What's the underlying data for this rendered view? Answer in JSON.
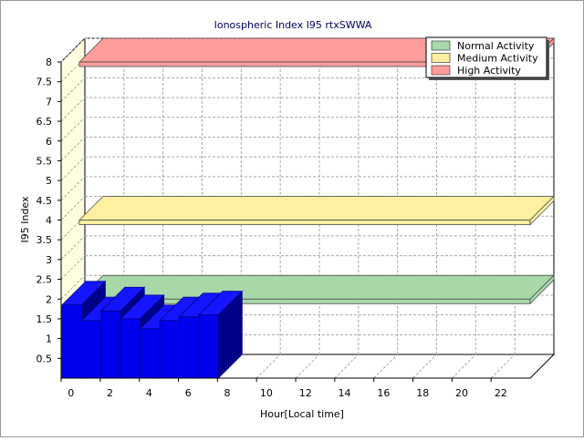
{
  "chart_data": {
    "type": "bar",
    "title": "Ionospheric Index I95 rtxSWWA",
    "xlabel": "Hour[Local time]",
    "ylabel": "I95 Index",
    "x": [
      0,
      1,
      2,
      3,
      4,
      5,
      6,
      7
    ],
    "values": [
      1.85,
      1.45,
      1.7,
      1.5,
      1.25,
      1.45,
      1.55,
      1.6
    ],
    "xlim": [
      0,
      24
    ],
    "ylim": [
      0,
      8
    ],
    "x_ticks": [
      "0",
      "2",
      "4",
      "6",
      "8",
      "10",
      "12",
      "14",
      "16",
      "18",
      "20",
      "22"
    ],
    "y_ticks": [
      "0.5",
      "1",
      "1.5",
      "2",
      "2.5",
      "3",
      "3.5",
      "4",
      "4.5",
      "5",
      "5.5",
      "6",
      "6.5",
      "7",
      "7.5",
      "8"
    ],
    "grid": true,
    "legend_position": "top-right",
    "bands": [
      {
        "name": "Normal Activity",
        "value": 2,
        "color": "#a8d8a8"
      },
      {
        "name": "Medium Activity",
        "value": 4,
        "color": "#fff0a0"
      },
      {
        "name": "High Activity",
        "value": 8,
        "color": "#ff9c9c"
      }
    ],
    "colors": {
      "bar_front": "#0000ee",
      "bar_top": "#1515ff",
      "bar_side": "#000088",
      "wall": "#fffde0",
      "grid": "#a8a8a8",
      "axis": "#000000",
      "title": "#000060"
    }
  }
}
